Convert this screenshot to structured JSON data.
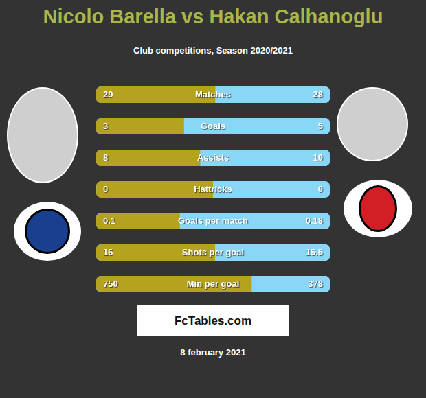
{
  "chart_data": {
    "type": "bar",
    "title": "Nicolo Barella vs Hakan Calhanoglu",
    "subtitle": "Club competitions, Season 2020/2021",
    "orientation": "horizontal",
    "stacked": true,
    "data_labels": true,
    "tick_labels": false,
    "categories": [
      "Matches",
      "Goals",
      "Assists",
      "Hattricks",
      "Goals per match",
      "Shots per goal",
      "Min per goal"
    ],
    "series": [
      {
        "name": "Nicolo Barella",
        "color": "#b5a320",
        "values": [
          29,
          3,
          8,
          0,
          0.1,
          16,
          750
        ]
      },
      {
        "name": "Hakan Calhanoglu",
        "color": "#8ad6f6",
        "values": [
          28,
          5,
          10,
          0,
          0.18,
          15.5,
          378
        ]
      }
    ],
    "annotations": [
      "FcTables.com",
      "8 february 2021"
    ]
  }
}
